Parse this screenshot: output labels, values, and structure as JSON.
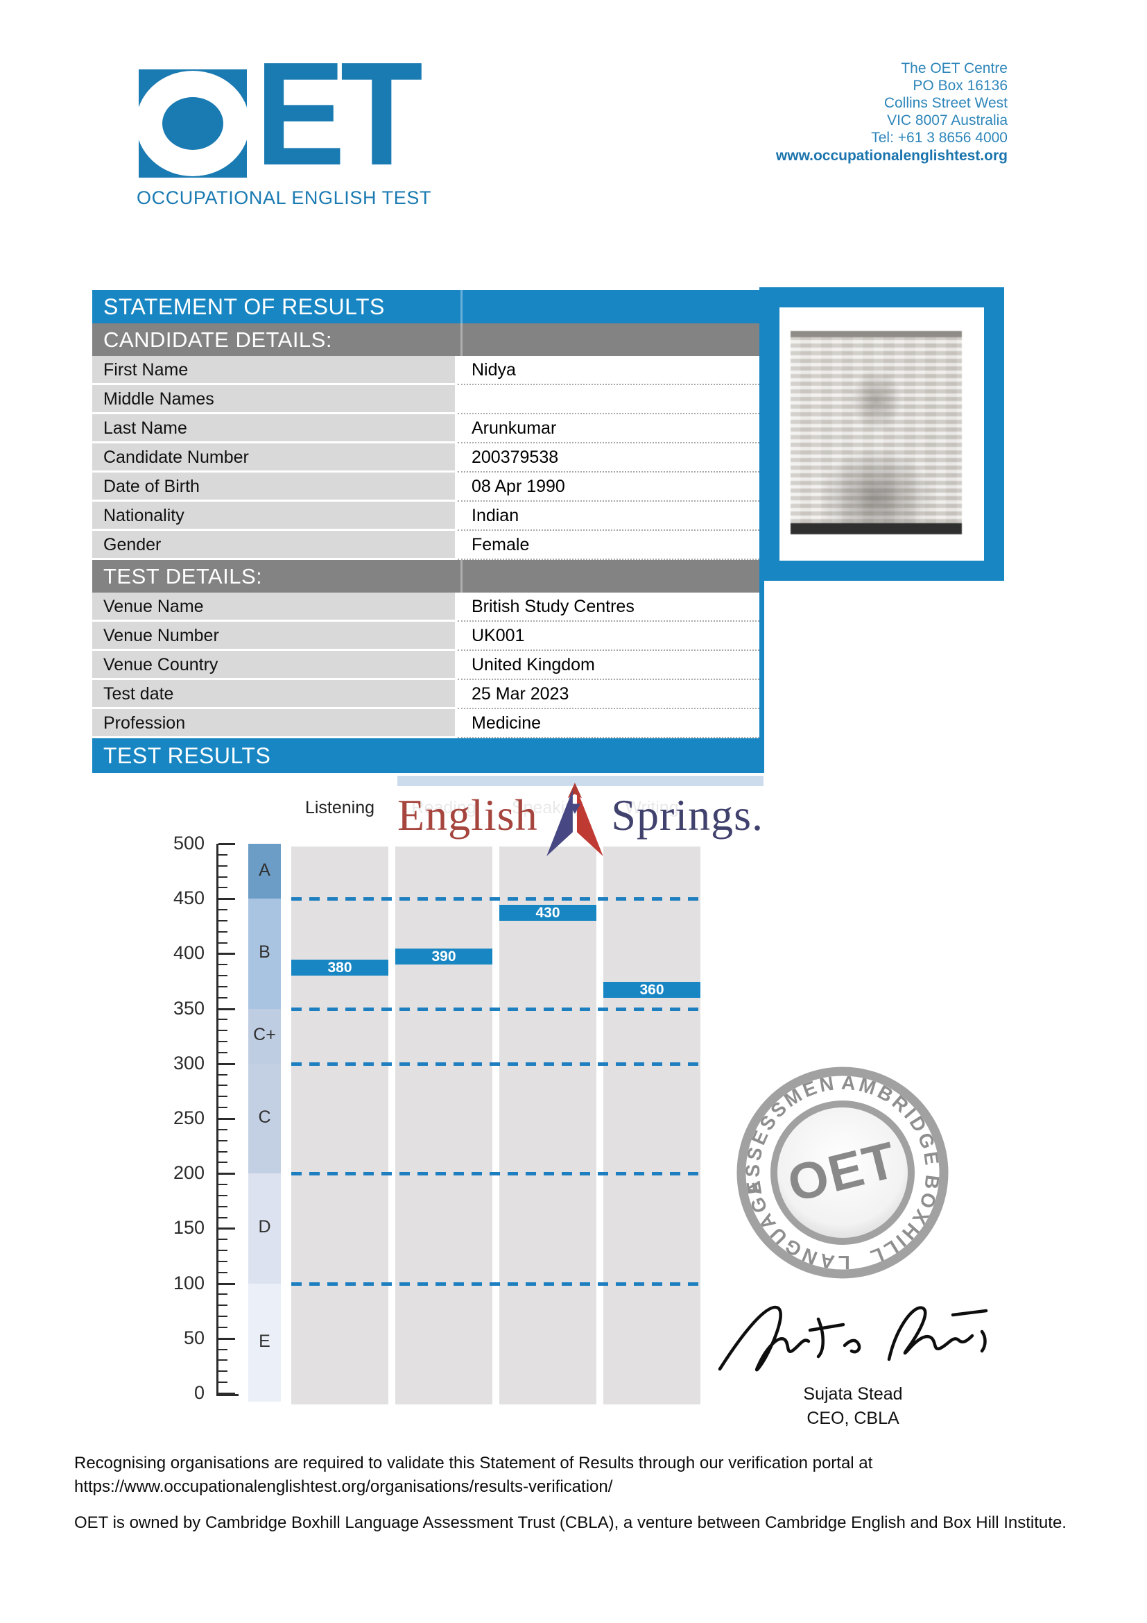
{
  "header": {
    "logo_text": "OET",
    "logo_et": "ET",
    "tagline": "OCCUPATIONAL ENGLISH TEST",
    "address_lines": [
      "The OET Centre",
      "PO Box 16136",
      "Collins Street West",
      "VIC 8007 Australia",
      "Tel: +61 3 8656 4000"
    ],
    "website": "www.occupationalenglishtest.org"
  },
  "statement_title": "STATEMENT OF RESULTS",
  "candidate_details": {
    "heading": "CANDIDATE DETAILS:",
    "rows": [
      {
        "label": "First Name",
        "value": "Nidya"
      },
      {
        "label": "Middle Names",
        "value": ""
      },
      {
        "label": "Last Name",
        "value": "Arunkumar"
      },
      {
        "label": "Candidate Number",
        "value": "200379538"
      },
      {
        "label": "Date of Birth",
        "value": "08 Apr 1990"
      },
      {
        "label": "Nationality",
        "value": "Indian"
      },
      {
        "label": "Gender",
        "value": "Female"
      }
    ]
  },
  "test_details": {
    "heading": "TEST DETAILS:",
    "rows": [
      {
        "label": "Venue Name",
        "value": "British Study Centres"
      },
      {
        "label": "Venue Number",
        "value": "UK001"
      },
      {
        "label": "Venue Country",
        "value": "United Kingdom"
      },
      {
        "label": "Test date",
        "value": "25 Mar 2023"
      },
      {
        "label": "Profession",
        "value": "Medicine"
      }
    ]
  },
  "results_heading": "TEST RESULTS",
  "chart_data": {
    "type": "bar",
    "categories": [
      "Listening",
      "Reading",
      "Speaking",
      "Writing"
    ],
    "values": [
      380,
      390,
      430,
      360
    ],
    "title": "",
    "xlabel": "",
    "ylabel": "",
    "ylim": [
      0,
      500
    ],
    "ytick_step": 50,
    "minor_tick_step": 10,
    "grid": false,
    "bar_color": "#1786c3",
    "boundary_lines": [
      450,
      350,
      300,
      200,
      100
    ],
    "grade_bands": [
      {
        "label": "A",
        "from": 450,
        "to": 500,
        "color": "#6c9dc6"
      },
      {
        "label": "B",
        "from": 350,
        "to": 450,
        "color": "#a9c4e1"
      },
      {
        "label": "C+",
        "from": 300,
        "to": 350,
        "color": "#bfcde3"
      },
      {
        "label": "C",
        "from": 200,
        "to": 300,
        "color": "#c3cfe2"
      },
      {
        "label": "D",
        "from": 100,
        "to": 200,
        "color": "#dce2ef"
      },
      {
        "label": "E",
        "from": 0,
        "to": 100,
        "color": "#ebeff7"
      }
    ]
  },
  "watermark": {
    "word1": "English",
    "word2": "Springs."
  },
  "seal": {
    "top_left": "ASSESSMENT",
    "top_right": "CAMBRIDGE",
    "bottom_right": "BOXHILL",
    "bottom_left": "LANGUAGE",
    "center": "OET"
  },
  "signatory": {
    "name": "Sujata Stead",
    "title": "CEO, CBLA"
  },
  "footer": {
    "line1": "Recognising organisations are required to validate this Statement of Results through our verification portal at",
    "line2": "https://www.occupationalenglishtest.org/organisations/results-verification/",
    "para2": "OET is owned by Cambridge Boxhill Language Assessment Trust (CBLA), a venture between Cambridge English and Box Hill Institute."
  },
  "colors": {
    "brand_blue": "#1a7ab2",
    "bar_blue": "#1786c3",
    "header_grey": "#838383",
    "label_grey": "#d9d9d9",
    "column_grey": "#e2e0e0",
    "dashed_blue": "#1e7fc0",
    "watermark_red": "#a5453e",
    "watermark_navy": "#41416e",
    "seal_grey": "#8a8a8a",
    "address_blue": "#2e86ba"
  }
}
